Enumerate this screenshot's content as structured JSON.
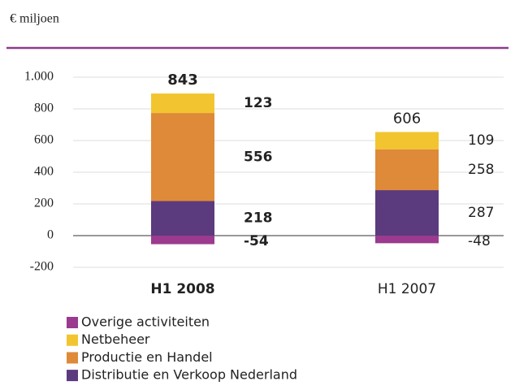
{
  "chart_data": {
    "type": "stacked_bar",
    "unit_label": "€ miljoen",
    "categories": [
      "H1 2008",
      "H1 2007"
    ],
    "highlight_category": 0,
    "totals": [
      843,
      606
    ],
    "series": [
      {
        "name": "Overige activiteiten",
        "color": "#9b3a8f",
        "values": [
          -54,
          -48
        ]
      },
      {
        "name": "Netbeheer",
        "color": "#f2c530",
        "values": [
          123,
          109
        ]
      },
      {
        "name": "Productie en Handel",
        "color": "#de8a38",
        "values": [
          556,
          258
        ]
      },
      {
        "name": "Distributie en Verkoop Nederland",
        "color": "#5c3a7e",
        "values": [
          218,
          287
        ]
      }
    ],
    "ylim": [
      -200,
      1000
    ],
    "yticks": [
      -200,
      0,
      200,
      400,
      600,
      800,
      {
        "value": 1000,
        "label": "1.000"
      }
    ],
    "grid": true
  }
}
